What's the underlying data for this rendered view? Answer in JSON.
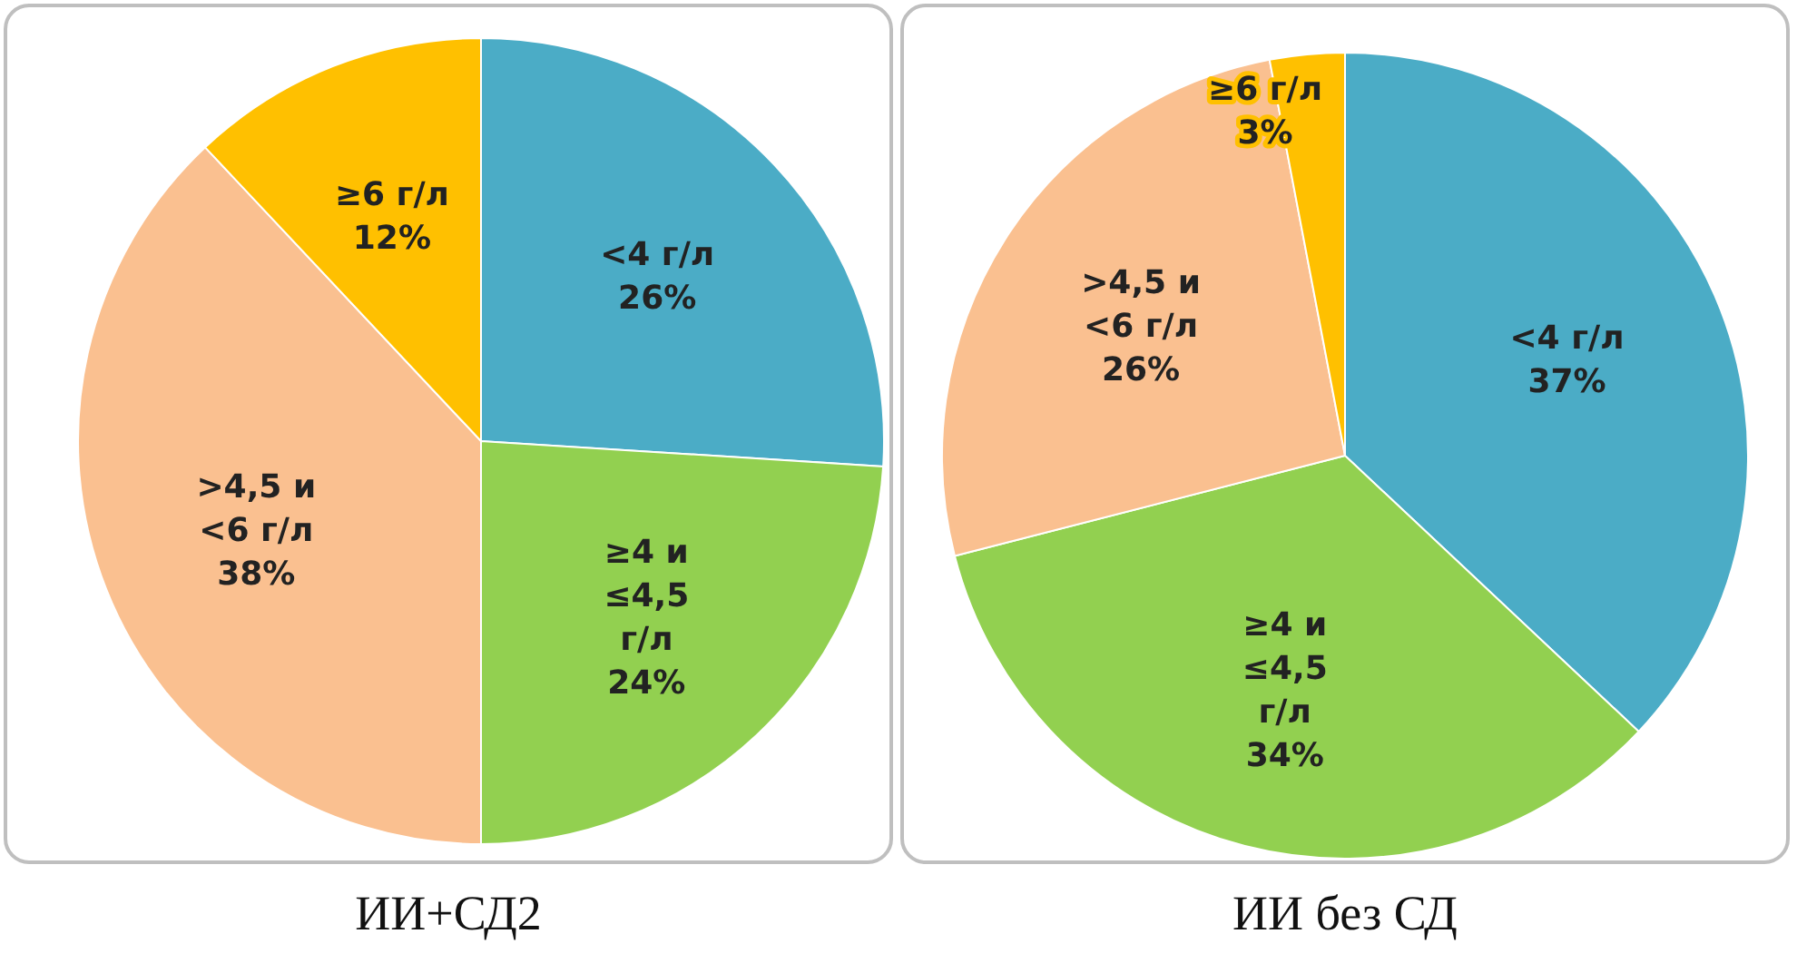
{
  "chart_data": [
    {
      "type": "pie",
      "title": "ИИ+СД2",
      "categories": [
        "<4 г/л",
        "≥4 и ≤4,5 г/л",
        ">4,5 и <6 г/л",
        "≥6 г/л"
      ],
      "values": [
        26,
        24,
        38,
        12
      ],
      "value_labels": [
        "26%",
        "24%",
        "38%",
        "12%"
      ],
      "colors": [
        "#4bacc6",
        "#92d050",
        "#fac090",
        "#ffc000"
      ],
      "legend": false
    },
    {
      "type": "pie",
      "title": "ИИ без СД",
      "categories": [
        "<4 г/л",
        "≥4 и ≤4,5 г/л",
        ">4,5 и <6 г/л",
        "≥6 г/л"
      ],
      "values": [
        37,
        34,
        26,
        3
      ],
      "value_labels": [
        "37%",
        "34%",
        "26%",
        "3%"
      ],
      "colors": [
        "#4bacc6",
        "#92d050",
        "#fac090",
        "#ffc000"
      ],
      "legend": false
    }
  ]
}
